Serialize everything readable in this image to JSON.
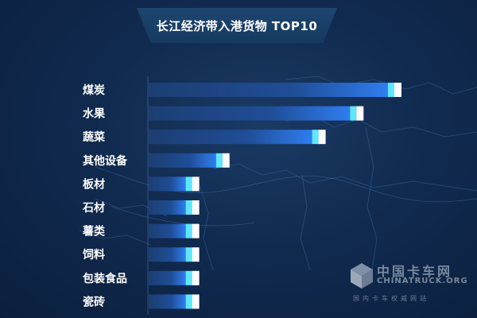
{
  "chart_data": {
    "type": "bar",
    "orientation": "horizontal",
    "title": "长江经济带入港货物 TOP10",
    "categories": [
      "煤炭",
      "水果",
      "蔬菜",
      "其他设备",
      "板材",
      "石材",
      "薯类",
      "饲料",
      "包装食品",
      "瓷砖"
    ],
    "values": [
      100,
      85,
      70,
      32,
      20,
      20,
      20,
      20,
      20,
      20
    ],
    "xlabel": "",
    "ylabel": "",
    "grid": false,
    "legend": "none",
    "colors": {
      "background": "#0f2a4e",
      "bar_dark": "#1c3e72",
      "bar_bright": "#2f7df0",
      "bar_cap_cyan": "#5ee8ff",
      "bar_cap_white": "#ffffff",
      "label": "#ffffff"
    }
  },
  "watermark": {
    "title": "中国卡车网",
    "brand": "CHINATRUCK.ORG",
    "slogan": "国内卡车权威网站",
    "icon": "cube-logo-icon"
  }
}
